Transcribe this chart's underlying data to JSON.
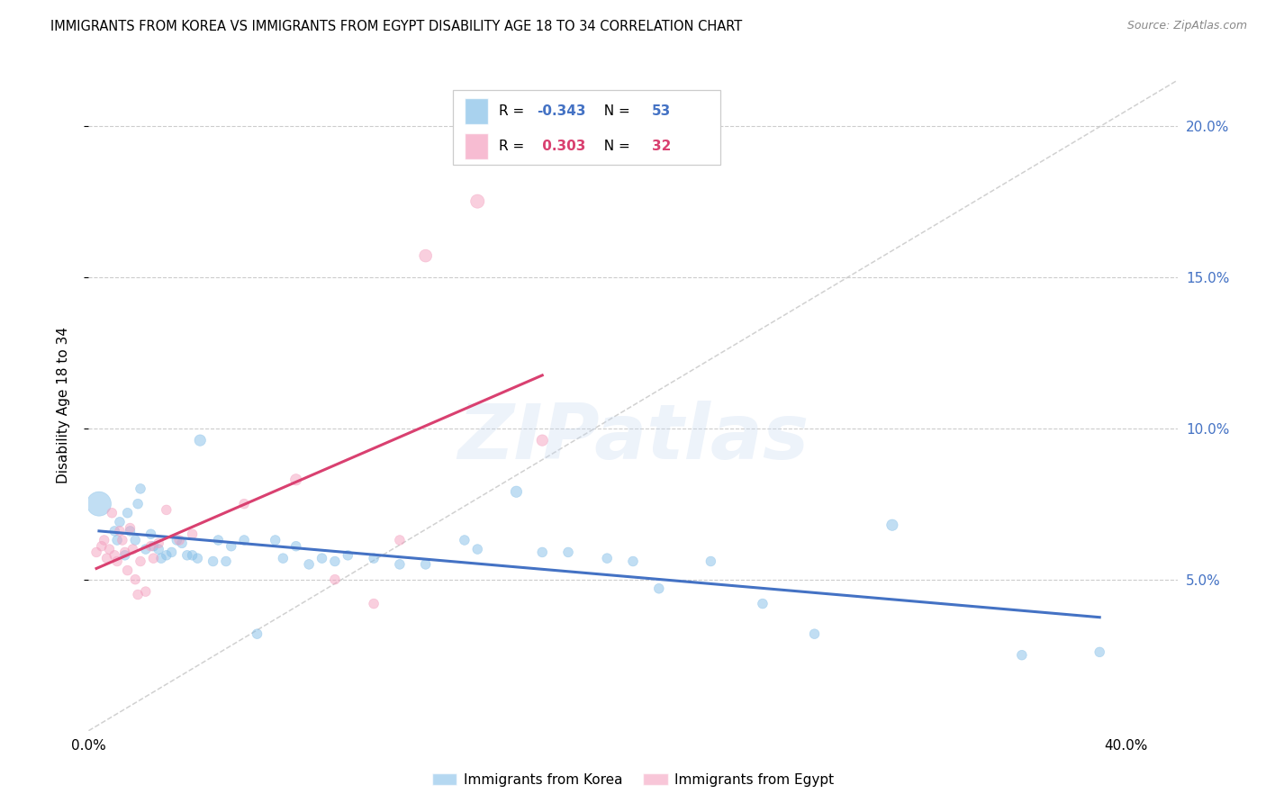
{
  "title": "IMMIGRANTS FROM KOREA VS IMMIGRANTS FROM EGYPT DISABILITY AGE 18 TO 34 CORRELATION CHART",
  "source": "Source: ZipAtlas.com",
  "ylabel": "Disability Age 18 to 34",
  "xlim": [
    0.0,
    0.42
  ],
  "ylim": [
    0.0,
    0.215
  ],
  "yticks": [
    0.05,
    0.1,
    0.15,
    0.2
  ],
  "ytick_labels": [
    "5.0%",
    "10.0%",
    "15.0%",
    "20.0%"
  ],
  "xticks": [
    0.0,
    0.1,
    0.2,
    0.3,
    0.4
  ],
  "xtick_labels": [
    "0.0%",
    "",
    "",
    "",
    "40.0%"
  ],
  "korea_R": -0.343,
  "korea_N": 53,
  "egypt_R": 0.303,
  "egypt_N": 32,
  "korea_color": "#85bfe8",
  "egypt_color": "#f4a0bf",
  "korea_line_color": "#4472c4",
  "egypt_line_color": "#d94070",
  "grid_color": "#cccccc",
  "diag_color": "#cccccc",
  "watermark_color": "#c5d8f0",
  "watermark": "ZIPatlas",
  "legend_label_korea": "Immigrants from Korea",
  "legend_label_egypt": "Immigrants from Egypt",
  "korea_scatter_x": [
    0.004,
    0.01,
    0.011,
    0.012,
    0.014,
    0.015,
    0.016,
    0.018,
    0.019,
    0.02,
    0.022,
    0.024,
    0.025,
    0.027,
    0.028,
    0.03,
    0.032,
    0.034,
    0.036,
    0.038,
    0.04,
    0.042,
    0.043,
    0.048,
    0.05,
    0.053,
    0.055,
    0.06,
    0.065,
    0.072,
    0.075,
    0.08,
    0.085,
    0.09,
    0.095,
    0.1,
    0.11,
    0.12,
    0.13,
    0.145,
    0.15,
    0.165,
    0.175,
    0.185,
    0.2,
    0.21,
    0.22,
    0.24,
    0.26,
    0.28,
    0.31,
    0.36,
    0.39
  ],
  "korea_scatter_y": [
    0.075,
    0.066,
    0.063,
    0.069,
    0.058,
    0.072,
    0.066,
    0.063,
    0.075,
    0.08,
    0.06,
    0.065,
    0.061,
    0.06,
    0.057,
    0.058,
    0.059,
    0.063,
    0.062,
    0.058,
    0.058,
    0.057,
    0.096,
    0.056,
    0.063,
    0.056,
    0.061,
    0.063,
    0.032,
    0.063,
    0.057,
    0.061,
    0.055,
    0.057,
    0.056,
    0.058,
    0.057,
    0.055,
    0.055,
    0.063,
    0.06,
    0.079,
    0.059,
    0.059,
    0.057,
    0.056,
    0.047,
    0.056,
    0.042,
    0.032,
    0.068,
    0.025,
    0.026
  ],
  "korea_scatter_s": [
    380,
    60,
    60,
    60,
    60,
    60,
    60,
    60,
    60,
    60,
    60,
    60,
    60,
    60,
    60,
    60,
    60,
    60,
    60,
    60,
    60,
    60,
    80,
    60,
    60,
    60,
    60,
    60,
    60,
    60,
    60,
    60,
    60,
    60,
    60,
    60,
    60,
    60,
    60,
    60,
    60,
    80,
    60,
    60,
    60,
    60,
    60,
    60,
    60,
    60,
    80,
    60,
    60
  ],
  "egypt_scatter_x": [
    0.003,
    0.005,
    0.006,
    0.007,
    0.008,
    0.009,
    0.01,
    0.011,
    0.012,
    0.013,
    0.014,
    0.015,
    0.016,
    0.017,
    0.018,
    0.019,
    0.02,
    0.022,
    0.024,
    0.025,
    0.027,
    0.03,
    0.035,
    0.04,
    0.06,
    0.08,
    0.095,
    0.11,
    0.12,
    0.13,
    0.15,
    0.175
  ],
  "egypt_scatter_y": [
    0.059,
    0.061,
    0.063,
    0.057,
    0.06,
    0.072,
    0.058,
    0.056,
    0.066,
    0.063,
    0.059,
    0.053,
    0.067,
    0.06,
    0.05,
    0.045,
    0.056,
    0.046,
    0.061,
    0.057,
    0.062,
    0.073,
    0.063,
    0.065,
    0.075,
    0.083,
    0.05,
    0.042,
    0.063,
    0.157,
    0.175,
    0.096
  ],
  "egypt_scatter_s": [
    60,
    60,
    60,
    60,
    60,
    60,
    60,
    60,
    60,
    60,
    60,
    60,
    60,
    60,
    60,
    60,
    60,
    60,
    60,
    60,
    60,
    60,
    60,
    60,
    60,
    80,
    60,
    60,
    60,
    100,
    120,
    80
  ]
}
